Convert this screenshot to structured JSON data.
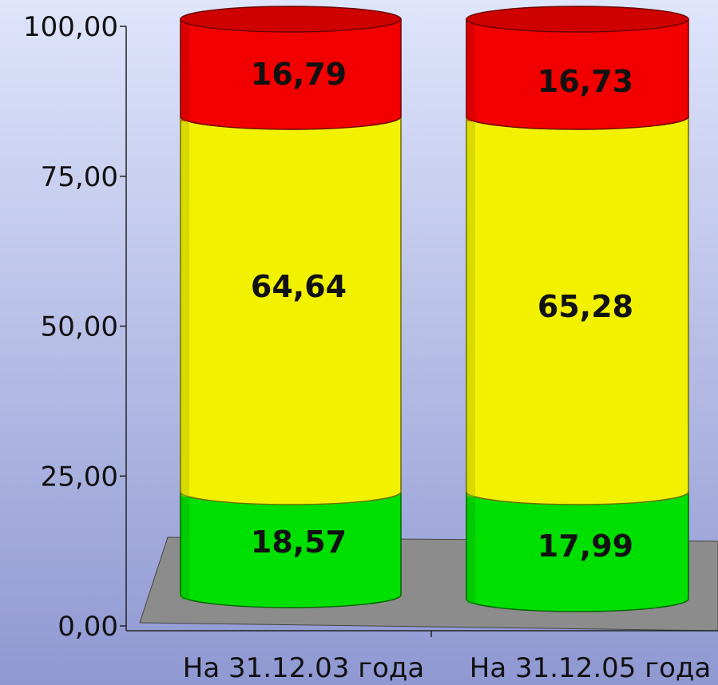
{
  "chart_data": {
    "type": "bar",
    "stacked": true,
    "style": "3d-cylinder",
    "categories": [
      "На 31.12.03 года",
      "На 31.12.05 года"
    ],
    "series": [
      {
        "values": [
          18.57,
          17.99
        ],
        "color": "#00e000"
      },
      {
        "values": [
          64.64,
          65.28
        ],
        "color": "#f2f200"
      },
      {
        "values": [
          16.79,
          16.73
        ],
        "color": "#f20000"
      }
    ],
    "yticks": [
      "0,00",
      "25,00",
      "50,00",
      "75,00",
      "100,00"
    ],
    "ylim": [
      0,
      100
    ],
    "value_labels": [
      [
        "18,57",
        "17,99"
      ],
      [
        "64,64",
        "65,28"
      ],
      [
        "16,79",
        "16,73"
      ]
    ],
    "legend": "none",
    "background_colors": [
      "#dfe5fb",
      "#8f98d2"
    ],
    "floor_color": "#8c8c8c"
  }
}
